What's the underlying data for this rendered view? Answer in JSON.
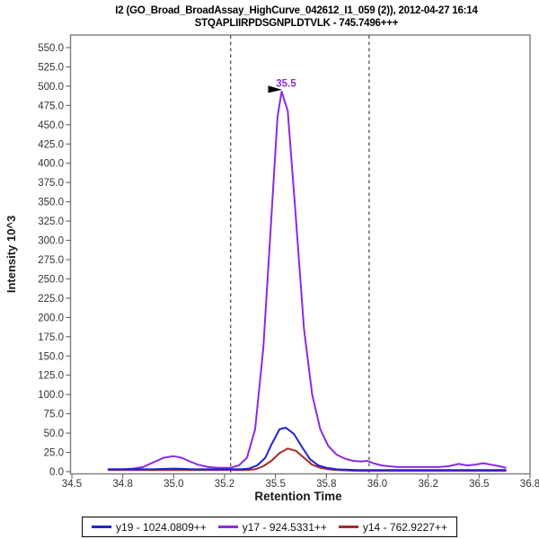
{
  "title": {
    "line1": "I2 (GO_Broad_BroadAssay_HighCurve_042612_I1_059 (2)), 2012-04-27 16:14",
    "line2": "STQAPLIIRPDSGNPLDTVLK - 745.7496+++"
  },
  "legend": {
    "items": [
      {
        "label": "y19 - 1024.0809++",
        "color": "#2121d4"
      },
      {
        "label": "y17 - 924.5331++",
        "color": "#8a2be2"
      },
      {
        "label": "y14 - 762.9227++",
        "color": "#a52a2a"
      }
    ]
  },
  "chart_data": {
    "type": "line",
    "title": "I2 (GO_Broad_BroadAssay_HighCurve_042612_I1_059 (2)), 2012-04-27 16:14 | STQAPLIIRPDSGNPLDTVLK - 745.7496+++",
    "xlabel": "Retention Time",
    "ylabel": "Intensity 10^3",
    "xlim": [
      34.5,
      36.75
    ],
    "ylim": [
      0,
      565
    ],
    "grid": false,
    "legend_position": "bottom",
    "x_ticks": {
      "values": [
        34.5,
        34.75,
        35.0,
        35.25,
        35.5,
        35.75,
        36.0,
        36.25,
        36.5,
        36.75
      ],
      "labels": [
        "34.5",
        "34.8",
        "35.0",
        "35.2",
        "35.5",
        "35.8",
        "36.0",
        "36.2",
        "36.5",
        "36.8"
      ]
    },
    "y_ticks": {
      "values": [
        0,
        25,
        50,
        75,
        100,
        125,
        150,
        175,
        200,
        225,
        250,
        275,
        300,
        325,
        350,
        375,
        400,
        425,
        450,
        475,
        500,
        525,
        550
      ],
      "labels": [
        "0.0",
        "25.0",
        "50.0",
        "75.0",
        "100.0",
        "125.0",
        "150.0",
        "175.0",
        "200.0",
        "225.0",
        "250.0",
        "275.0",
        "300.0",
        "325.0",
        "350.0",
        "375.0",
        "400.0",
        "425.0",
        "450.0",
        "475.0",
        "500.0",
        "525.0",
        "550.0"
      ]
    },
    "boundary_times": [
      35.28,
      35.96
    ],
    "peak_annotation": {
      "label": "35.5",
      "rt": 35.53,
      "intensity_k": 493
    },
    "series": [
      {
        "name": "y19 - 1024.0809++",
        "color": "#2121d4",
        "points": [
          [
            34.68,
            3
          ],
          [
            34.8,
            3
          ],
          [
            34.9,
            3
          ],
          [
            35.0,
            4
          ],
          [
            35.1,
            3
          ],
          [
            35.2,
            3
          ],
          [
            35.28,
            3
          ],
          [
            35.33,
            3
          ],
          [
            35.37,
            4
          ],
          [
            35.41,
            8
          ],
          [
            35.45,
            18
          ],
          [
            35.48,
            35
          ],
          [
            35.52,
            55
          ],
          [
            35.55,
            57
          ],
          [
            35.59,
            49
          ],
          [
            35.63,
            32
          ],
          [
            35.67,
            16
          ],
          [
            35.71,
            8
          ],
          [
            35.75,
            5
          ],
          [
            35.8,
            3
          ],
          [
            35.9,
            2
          ],
          [
            36.0,
            2
          ],
          [
            36.1,
            2
          ],
          [
            36.2,
            2
          ],
          [
            36.3,
            2
          ],
          [
            36.4,
            2
          ],
          [
            36.5,
            2
          ],
          [
            36.6,
            2
          ],
          [
            36.63,
            2
          ]
        ]
      },
      {
        "name": "y17 - 924.5331++",
        "color": "#8a2be2",
        "points": [
          [
            34.68,
            3
          ],
          [
            34.75,
            3
          ],
          [
            34.8,
            4
          ],
          [
            34.85,
            6
          ],
          [
            34.9,
            12
          ],
          [
            34.95,
            18
          ],
          [
            35.0,
            20
          ],
          [
            35.04,
            18
          ],
          [
            35.08,
            13
          ],
          [
            35.12,
            9
          ],
          [
            35.17,
            6
          ],
          [
            35.22,
            5
          ],
          [
            35.28,
            5
          ],
          [
            35.32,
            8
          ],
          [
            35.36,
            18
          ],
          [
            35.4,
            55
          ],
          [
            35.44,
            160
          ],
          [
            35.48,
            330
          ],
          [
            35.51,
            460
          ],
          [
            35.53,
            493
          ],
          [
            35.56,
            468
          ],
          [
            35.6,
            330
          ],
          [
            35.64,
            185
          ],
          [
            35.68,
            100
          ],
          [
            35.72,
            55
          ],
          [
            35.76,
            33
          ],
          [
            35.8,
            22
          ],
          [
            35.84,
            17
          ],
          [
            35.88,
            14
          ],
          [
            35.92,
            13
          ],
          [
            35.95,
            14
          ],
          [
            35.98,
            11
          ],
          [
            36.02,
            8
          ],
          [
            36.06,
            7
          ],
          [
            36.1,
            6
          ],
          [
            36.15,
            6
          ],
          [
            36.2,
            6
          ],
          [
            36.25,
            6
          ],
          [
            36.3,
            6
          ],
          [
            36.35,
            7
          ],
          [
            36.4,
            10
          ],
          [
            36.44,
            8
          ],
          [
            36.48,
            9
          ],
          [
            36.52,
            11
          ],
          [
            36.56,
            9
          ],
          [
            36.6,
            7
          ],
          [
            36.63,
            5
          ]
        ]
      },
      {
        "name": "y14 - 762.9227++",
        "color": "#a52a2a",
        "points": [
          [
            34.68,
            2
          ],
          [
            34.8,
            2
          ],
          [
            34.9,
            2
          ],
          [
            35.0,
            2
          ],
          [
            35.1,
            2
          ],
          [
            35.2,
            2
          ],
          [
            35.3,
            2
          ],
          [
            35.36,
            2
          ],
          [
            35.4,
            3
          ],
          [
            35.44,
            7
          ],
          [
            35.48,
            14
          ],
          [
            35.52,
            24
          ],
          [
            35.56,
            30
          ],
          [
            35.6,
            27
          ],
          [
            35.64,
            18
          ],
          [
            35.68,
            9
          ],
          [
            35.72,
            5
          ],
          [
            35.76,
            3
          ],
          [
            35.8,
            2
          ],
          [
            35.9,
            1
          ],
          [
            36.0,
            1
          ],
          [
            36.1,
            1
          ],
          [
            36.2,
            1
          ],
          [
            36.3,
            1
          ],
          [
            36.4,
            1
          ],
          [
            36.5,
            1
          ],
          [
            36.6,
            1
          ],
          [
            36.63,
            1
          ]
        ]
      }
    ]
  }
}
